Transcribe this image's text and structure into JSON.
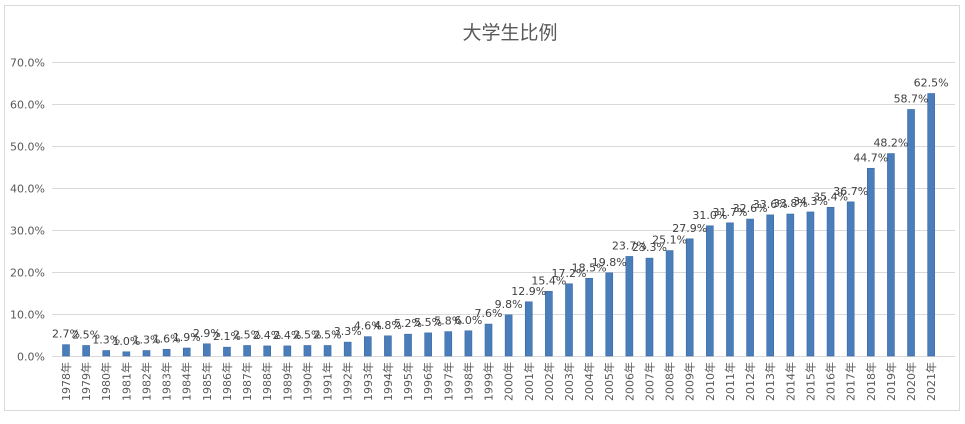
{
  "chart_data": {
    "type": "bar",
    "title": "大学生比例",
    "categories": [
      "1978年",
      "1979年",
      "1980年",
      "1981年",
      "1982年",
      "1983年",
      "1984年",
      "1985年",
      "1986年",
      "1987年",
      "1988年",
      "1989年",
      "1990年",
      "1991年",
      "1992年",
      "1993年",
      "1994年",
      "1995年",
      "1996年",
      "1997年",
      "1998年",
      "1999年",
      "2000年",
      "2001年",
      "2002年",
      "2003年",
      "2004年",
      "2005年",
      "2006年",
      "2007年",
      "2008年",
      "2009年",
      "2010年",
      "2011年",
      "2012年",
      "2013年",
      "2014年",
      "2015年",
      "2016年",
      "2017年",
      "2018年",
      "2019年",
      "2020年",
      "2021年"
    ],
    "values": [
      2.7,
      2.5,
      1.3,
      1.0,
      1.3,
      1.6,
      1.9,
      2.9,
      2.1,
      2.5,
      2.4,
      2.4,
      2.5,
      2.5,
      3.3,
      4.6,
      4.8,
      5.2,
      5.5,
      5.8,
      6.0,
      7.6,
      9.8,
      12.9,
      15.4,
      17.2,
      18.5,
      19.8,
      23.7,
      23.3,
      25.1,
      27.9,
      31.0,
      31.7,
      32.6,
      33.6,
      33.8,
      34.3,
      35.4,
      36.7,
      44.7,
      48.2,
      58.7,
      62.5
    ],
    "data_labels": [
      "2.7%",
      "2.5%",
      "1.3%",
      "1.0%",
      "1.3%",
      "1.6%",
      "1.9%",
      "2.9%",
      "2.1%",
      "2.5%",
      "2.4%",
      "2.4%",
      "2.5%",
      "2.5%",
      "3.3%",
      "4.6%",
      "4.8%",
      "5.2%",
      "5.5%",
      "5.8%",
      "6.0%",
      "7.6%",
      "9.8%",
      "12.9%",
      "15.4%",
      "17.2%",
      "18.5%",
      "19.8%",
      "23.7%",
      "23.3%",
      "25.1%",
      "27.9%",
      "31.0%",
      "31.7%",
      "32.6%",
      "33.6%",
      "33.8%",
      "34.3%",
      "35.4%",
      "36.7%",
      "44.7%",
      "48.2%",
      "58.7%",
      "62.5%"
    ],
    "ylim": [
      0,
      70
    ],
    "y_ticks": [
      0,
      10,
      20,
      30,
      40,
      50,
      60,
      70
    ],
    "y_tick_labels": [
      "0.0%",
      "10.0%",
      "20.0%",
      "30.0%",
      "40.0%",
      "50.0%",
      "60.0%",
      "70.0%"
    ],
    "grid": "horizontal",
    "legend": "none"
  },
  "colors": {
    "bar": "#4a7ebb",
    "bar_edge": "#3b68a3",
    "gridline": "#d9d9d9",
    "border": "#d9d9d9",
    "text": "#595959",
    "data_label": "#404040"
  }
}
